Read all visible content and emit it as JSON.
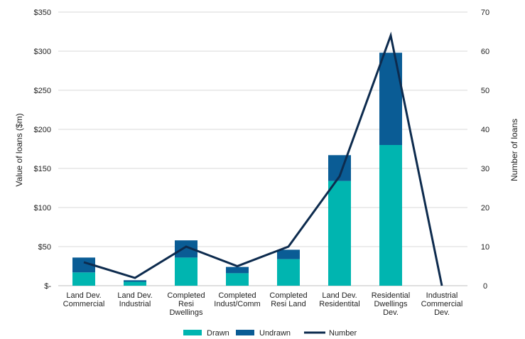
{
  "chart_data": {
    "type": "bar",
    "stacked": true,
    "categories": [
      [
        "Land Dev.",
        "Commercial"
      ],
      [
        "Land Dev.",
        "Industrial"
      ],
      [
        "Completed",
        "Resi",
        "Dwellings"
      ],
      [
        "Completed",
        "Indust/Comm"
      ],
      [
        "Completed",
        "Resi Land"
      ],
      [
        "Land Dev.",
        "Residentital"
      ],
      [
        "Residential",
        "Dwellings",
        "Dev."
      ],
      [
        "Industrial",
        "Commercial",
        "Dev."
      ]
    ],
    "series": [
      {
        "name": "Drawn",
        "type": "bar",
        "axis": "left",
        "color": "#00b5b0",
        "values": [
          17,
          5,
          36,
          16,
          34,
          134,
          180,
          0
        ]
      },
      {
        "name": "Undrawn",
        "type": "bar",
        "axis": "left",
        "color": "#0a5c95",
        "values": [
          19,
          2,
          22,
          8,
          12,
          33,
          118,
          0
        ]
      },
      {
        "name": "Number",
        "type": "line",
        "axis": "right",
        "color": "#0d2b4e",
        "values": [
          6,
          2,
          10,
          5,
          10,
          28,
          64,
          0
        ]
      }
    ],
    "ylabel": "Value of loans ($m)",
    "y2label": "Number of loans",
    "ylim": [
      0,
      350
    ],
    "y2lim": [
      0,
      70
    ],
    "yticks": [
      "$-",
      "$50",
      "$100",
      "$150",
      "$200",
      "$250",
      "$300",
      "$350"
    ],
    "y2ticks": [
      "0",
      "10",
      "20",
      "30",
      "40",
      "50",
      "60",
      "70"
    ],
    "grid": true,
    "legend": "bottom-center"
  }
}
